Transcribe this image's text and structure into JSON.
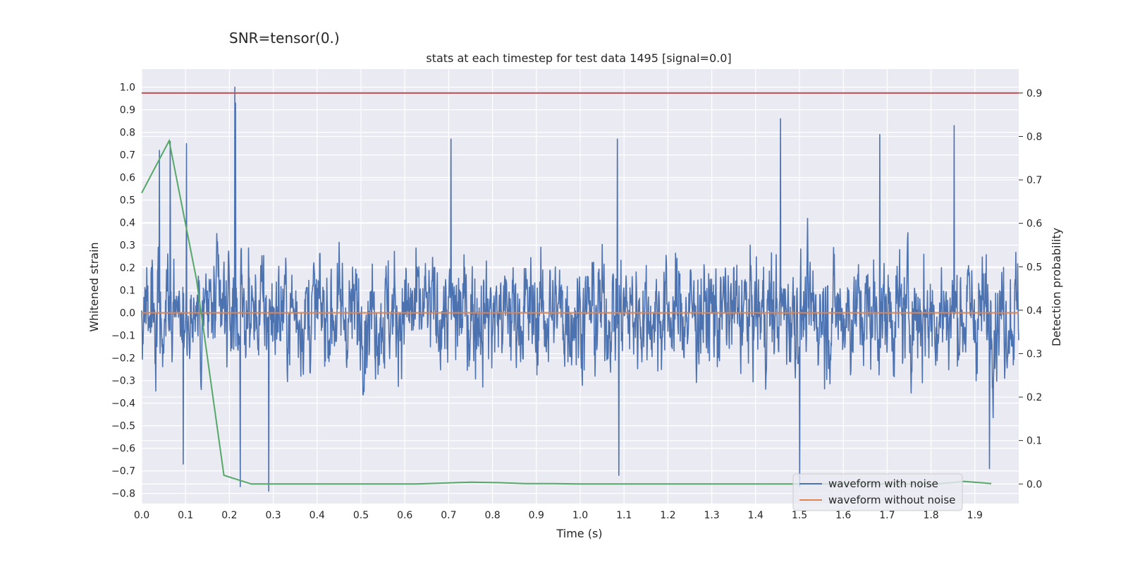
{
  "figure": {
    "suptitle": "SNR=tensor(0.)"
  },
  "colors": {
    "background": "#eaeaf2",
    "grid": "#ffffff",
    "noisy": "#4c72b0",
    "clean": "#dd8452",
    "probability": "#55a868",
    "threshold": "#c44e52"
  },
  "chart_data": {
    "type": "line",
    "title": "stats at each timestep for test data 1495 [signal=0.0]",
    "xlabel": "Time (s)",
    "ylabel": "Whitened strain",
    "ylabel_right": "Detection probability",
    "xlim": [
      0.0,
      2.0
    ],
    "ylim": [
      -0.845,
      1.08
    ],
    "ylim_right": [
      -0.045,
      0.955
    ],
    "xticks": [
      "0.0",
      "0.1",
      "0.2",
      "0.3",
      "0.4",
      "0.5",
      "0.6",
      "0.7",
      "0.8",
      "0.9",
      "1.0",
      "1.1",
      "1.2",
      "1.3",
      "1.4",
      "1.5",
      "1.6",
      "1.7",
      "1.8",
      "1.9"
    ],
    "yticks": [
      "1.0",
      "0.9",
      "0.8",
      "0.7",
      "0.6",
      "0.5",
      "0.4",
      "0.3",
      "0.2",
      "0.1",
      "0.0",
      "−0.1",
      "−0.2",
      "−0.3",
      "−0.4",
      "−0.5",
      "−0.6",
      "−0.7",
      "−0.8"
    ],
    "yticks_right": [
      "0.9",
      "0.8",
      "0.7",
      "0.6",
      "0.5",
      "0.4",
      "0.3",
      "0.2",
      "0.1",
      "0.0"
    ],
    "grid": true,
    "legend_placement": "lower-right",
    "series": [
      {
        "name": "waveform with noise",
        "axis": "left",
        "sampling": "noise-like whitened strain, approx. 4096 samples over 2 s, bounded about -0.80 to 1.00",
        "peaks": [
          {
            "x": 0.212,
            "y": 1.0
          },
          {
            "x": 0.214,
            "y": 0.93
          },
          {
            "x": 0.065,
            "y": 0.76
          },
          {
            "x": 0.102,
            "y": 0.75
          },
          {
            "x": 0.705,
            "y": 0.77
          },
          {
            "x": 1.457,
            "y": 0.86
          },
          {
            "x": 1.683,
            "y": 0.79
          },
          {
            "x": 1.853,
            "y": 0.83
          },
          {
            "x": 1.085,
            "y": 0.77
          },
          {
            "x": 0.04,
            "y": 0.72
          }
        ],
        "troughs": [
          {
            "x": 0.29,
            "y": -0.79
          },
          {
            "x": 0.225,
            "y": -0.77
          },
          {
            "x": 1.5,
            "y": -0.77
          },
          {
            "x": 1.088,
            "y": -0.72
          },
          {
            "x": 0.095,
            "y": -0.67
          },
          {
            "x": 1.933,
            "y": -0.69
          }
        ]
      },
      {
        "name": "waveform without noise",
        "axis": "left",
        "x": [
          0.0,
          2.0
        ],
        "y": [
          0.0,
          0.0
        ]
      },
      {
        "axis": "right",
        "x": [
          0.0,
          0.0625,
          0.125,
          0.1875,
          0.25,
          0.3125,
          0.375,
          0.4375,
          0.5,
          0.5625,
          0.625,
          0.6875,
          0.75,
          0.8125,
          0.875,
          0.9375,
          1.0,
          1.0625,
          1.125,
          1.1875,
          1.25,
          1.3125,
          1.375,
          1.4375,
          1.5,
          1.5625,
          1.625,
          1.6875,
          1.75,
          1.8125,
          1.875,
          1.9375
        ],
        "y": [
          0.67,
          0.79,
          0.47,
          0.02,
          0.0,
          0.0,
          0.0,
          0.0,
          0.0,
          0.0,
          0.0,
          0.002,
          0.004,
          0.003,
          0.001,
          0.001,
          0.0,
          0.0,
          0.0,
          0.0,
          0.0,
          0.0,
          0.0,
          0.0,
          0.0,
          0.0,
          0.0,
          0.0,
          0.0,
          0.0,
          0.006,
          0.001
        ]
      },
      {
        "axis": "right",
        "x": [
          0.0,
          2.0
        ],
        "y": [
          0.9,
          0.9
        ]
      }
    ]
  }
}
